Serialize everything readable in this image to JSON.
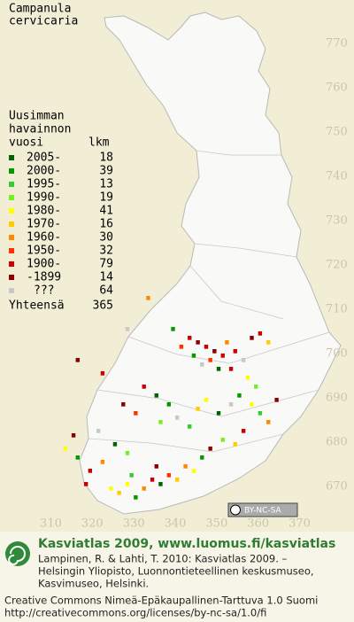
{
  "title": [
    "Campanula",
    "cervicaria"
  ],
  "legend": {
    "header": [
      "Uusimman",
      "havainnon",
      "vuosi"
    ],
    "count_header": "lkm",
    "items": [
      {
        "label": "2005-",
        "count": 18,
        "color": "#006400"
      },
      {
        "label": "2000-",
        "count": 39,
        "color": "#009a00"
      },
      {
        "label": "1995-",
        "count": 13,
        "color": "#33cc33"
      },
      {
        "label": "1990-",
        "count": 19,
        "color": "#77ee22"
      },
      {
        "label": "1980-",
        "count": 41,
        "color": "#ffff00"
      },
      {
        "label": "1970-",
        "count": 16,
        "color": "#ffcc00"
      },
      {
        "label": "1960-",
        "count": 30,
        "color": "#ff8800"
      },
      {
        "label": "1950-",
        "count": 32,
        "color": "#ff3300"
      },
      {
        "label": "1900-",
        "count": 79,
        "color": "#cc0000"
      },
      {
        "label": "-1899",
        "count": 14,
        "color": "#8b0000"
      },
      {
        "label": "???",
        "count": 64,
        "color": "#c8c8c8"
      }
    ],
    "total_label": "Yhteensä",
    "total": 365
  },
  "map": {
    "xlim": [
      302,
      378
    ],
    "ylim": [
      665,
      775
    ],
    "xticks": [
      310,
      320,
      330,
      340,
      350,
      360,
      370
    ],
    "yticks": [
      670,
      680,
      690,
      700,
      710,
      720,
      730,
      740,
      750,
      760,
      770
    ],
    "squares": [
      [
        343,
        703,
        8
      ],
      [
        345,
        702,
        9
      ],
      [
        347,
        701,
        8
      ],
      [
        349,
        700,
        9
      ],
      [
        351,
        699,
        8
      ],
      [
        348,
        698,
        7
      ],
      [
        346,
        697,
        10
      ],
      [
        352,
        702,
        6
      ],
      [
        354,
        700,
        8
      ],
      [
        350,
        696,
        0
      ],
      [
        344,
        699,
        1
      ],
      [
        356,
        698,
        10
      ],
      [
        353,
        696,
        8
      ],
      [
        341,
        701,
        7
      ],
      [
        358,
        703,
        9
      ],
      [
        360,
        704,
        8
      ],
      [
        362,
        702,
        5
      ],
      [
        339,
        705,
        1
      ],
      [
        357,
        694,
        4
      ],
      [
        355,
        690,
        1
      ],
      [
        358,
        688,
        4
      ],
      [
        360,
        686,
        2
      ],
      [
        353,
        688,
        10
      ],
      [
        362,
        684,
        6
      ],
      [
        356,
        682,
        8
      ],
      [
        350,
        686,
        0
      ],
      [
        347,
        689,
        4
      ],
      [
        364,
        689,
        9
      ],
      [
        359,
        692,
        3
      ],
      [
        335,
        690,
        0
      ],
      [
        338,
        688,
        1
      ],
      [
        332,
        692,
        8
      ],
      [
        340,
        685,
        10
      ],
      [
        336,
        684,
        3
      ],
      [
        330,
        686,
        7
      ],
      [
        327,
        688,
        9
      ],
      [
        343,
        683,
        2
      ],
      [
        345,
        687,
        5
      ],
      [
        313,
        678,
        4
      ],
      [
        316,
        676,
        1
      ],
      [
        319,
        673,
        8
      ],
      [
        322,
        675,
        6
      ],
      [
        315,
        681,
        9
      ],
      [
        325,
        679,
        0
      ],
      [
        321,
        682,
        10
      ],
      [
        328,
        677,
        3
      ],
      [
        324,
        669,
        4
      ],
      [
        326,
        668,
        5
      ],
      [
        328,
        670,
        4
      ],
      [
        330,
        667,
        1
      ],
      [
        332,
        669,
        6
      ],
      [
        334,
        671,
        8
      ],
      [
        336,
        670,
        0
      ],
      [
        338,
        672,
        7
      ],
      [
        340,
        671,
        5
      ],
      [
        342,
        674,
        6
      ],
      [
        344,
        673,
        4
      ],
      [
        346,
        676,
        1
      ],
      [
        348,
        678,
        9
      ],
      [
        351,
        680,
        3
      ],
      [
        354,
        679,
        5
      ],
      [
        318,
        670,
        8
      ],
      [
        329,
        672,
        2
      ],
      [
        335,
        674,
        9
      ],
      [
        322,
        695,
        8
      ],
      [
        316,
        698,
        9
      ],
      [
        328,
        705,
        10
      ],
      [
        333,
        712,
        6
      ]
    ]
  },
  "license_badge": "BY-NC-SA",
  "footer": {
    "headline": "Kasviatlas 2009, www.luomus.fi/kasviatlas",
    "citation": [
      "Lampinen, R. & Lahti, T. 2010: Kasviatlas 2009. –",
      "Helsingin Yliopisto, Luonnontieteellinen keskusmuseo,",
      "Kasvimuseo, Helsinki."
    ],
    "license": [
      "Creative Commons Nimeä-Epäkaupallinen-Tarttuva 1.0 Suomi",
      "http://creativecommons.org/licenses/by-nc-sa/1.0/fi"
    ]
  }
}
